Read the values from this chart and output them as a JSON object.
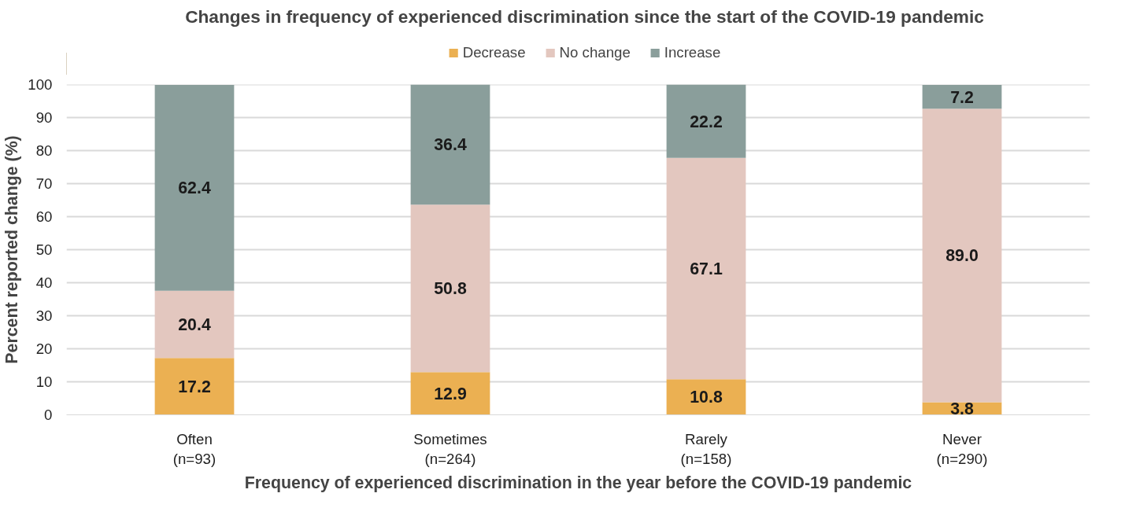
{
  "chart_data": {
    "type": "bar",
    "stacked": true,
    "title": "Changes in frequency of experienced discrimination since the start of the COVID-19 pandemic",
    "xlabel": "Frequency of experienced discrimination in the year before the COVID-19 pandemic",
    "ylabel": "Percent reported change (%)",
    "categories": [
      "Often\n(n=93)",
      "Sometimes\n(n=264)",
      "Rarely\n(n=158)",
      "Never\n(n=290)"
    ],
    "series": [
      {
        "name": "Decrease",
        "color": "#ebb052",
        "values": [
          17.2,
          12.9,
          10.8,
          3.8
        ],
        "value_labels": [
          "17.2",
          "12.9",
          "10.8",
          "3.8"
        ]
      },
      {
        "name": "No change",
        "color": "#e3c7bf",
        "values": [
          20.4,
          50.8,
          67.1,
          89.0
        ],
        "value_labels": [
          "20.4",
          "50.8",
          "67.1",
          "89.0"
        ]
      },
      {
        "name": "Increase",
        "color": "#8a9e9b",
        "values": [
          62.4,
          36.4,
          22.2,
          7.2
        ],
        "value_labels": [
          "62.4",
          "36.4",
          "22.2",
          "7.2"
        ]
      }
    ],
    "ylim": [
      0,
      100.1
    ],
    "yticks": [
      0,
      10,
      20,
      30,
      40,
      50,
      60,
      70,
      80,
      90,
      100
    ],
    "grid": "y",
    "legend": "top"
  }
}
